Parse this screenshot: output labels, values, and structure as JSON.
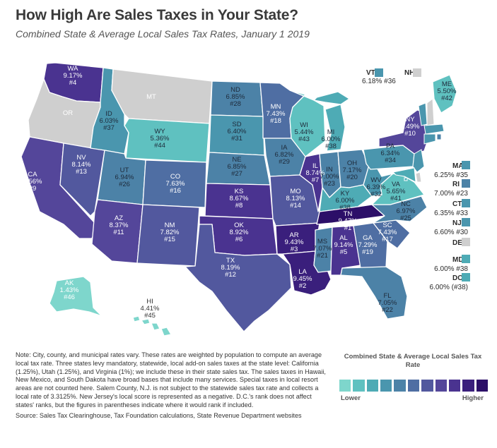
{
  "header": {
    "title": "How High Are Sales Taxes in Your State?",
    "subtitle": "Combined State & Average Local Sales Tax Rates, January 1 2019"
  },
  "colors": {
    "scale": [
      "#7ed6cc",
      "#5fc1c0",
      "#4eabb5",
      "#4a96ae",
      "#4c82a7",
      "#4f6ea3",
      "#52589e",
      "#54469a",
      "#4a3390",
      "#3a1f7c",
      "#2c0f68"
    ],
    "no_tax": "#cfcfcf",
    "border": "#ffffff"
  },
  "states": [
    {
      "abbr": "WA",
      "rate": "9.17%",
      "rank": "#4",
      "level": 8
    },
    {
      "abbr": "OR",
      "rate": "",
      "rank": "",
      "level": -1
    },
    {
      "abbr": "CA",
      "rate": "8.56%",
      "rank": "#9",
      "level": 7
    },
    {
      "abbr": "NV",
      "rate": "8.14%",
      "rank": "#13",
      "level": 6
    },
    {
      "abbr": "ID",
      "rate": "6.03%",
      "rank": "#37",
      "level": 3
    },
    {
      "abbr": "MT",
      "rate": "",
      "rank": "",
      "level": -1
    },
    {
      "abbr": "WY",
      "rate": "5.36%",
      "rank": "#44",
      "level": 1
    },
    {
      "abbr": "UT",
      "rate": "6.94%",
      "rank": "#26",
      "level": 4
    },
    {
      "abbr": "AZ",
      "rate": "8.37%",
      "rank": "#11",
      "level": 7
    },
    {
      "abbr": "CO",
      "rate": "7.63%",
      "rank": "#16",
      "level": 5
    },
    {
      "abbr": "NM",
      "rate": "7.82%",
      "rank": "#15",
      "level": 6
    },
    {
      "abbr": "ND",
      "rate": "6.85%",
      "rank": "#28",
      "level": 4
    },
    {
      "abbr": "SD",
      "rate": "6.40%",
      "rank": "#31",
      "level": 3
    },
    {
      "abbr": "NE",
      "rate": "6.85%",
      "rank": "#27",
      "level": 4
    },
    {
      "abbr": "KS",
      "rate": "8.67%",
      "rank": "#8",
      "level": 8
    },
    {
      "abbr": "OK",
      "rate": "8.92%",
      "rank": "#6",
      "level": 8
    },
    {
      "abbr": "TX",
      "rate": "8.19%",
      "rank": "#12",
      "level": 6
    },
    {
      "abbr": "MN",
      "rate": "7.43%",
      "rank": "#18",
      "level": 5
    },
    {
      "abbr": "IA",
      "rate": "6.82%",
      "rank": "#29",
      "level": 4
    },
    {
      "abbr": "MO",
      "rate": "8.13%",
      "rank": "#14",
      "level": 6
    },
    {
      "abbr": "AR",
      "rate": "9.43%",
      "rank": "#3",
      "level": 9
    },
    {
      "abbr": "LA",
      "rate": "9.45%",
      "rank": "#2",
      "level": 9
    },
    {
      "abbr": "WI",
      "rate": "5.44%",
      "rank": "#43",
      "level": 1
    },
    {
      "abbr": "IL",
      "rate": "8.74%",
      "rank": "#7",
      "level": 8
    },
    {
      "abbr": "MI",
      "rate": "6.00%",
      "rank": "#38",
      "level": 2
    },
    {
      "abbr": "IN",
      "rate": "7.00%",
      "rank": "#23",
      "level": 4
    },
    {
      "abbr": "OH",
      "rate": "7.17%",
      "rank": "#20",
      "level": 4
    },
    {
      "abbr": "KY",
      "rate": "6.00%",
      "rank": "#38",
      "level": 2
    },
    {
      "abbr": "TN",
      "rate": "9.47%",
      "rank": "#1",
      "level": 10
    },
    {
      "abbr": "MS",
      "rate": "7.07%",
      "rank": "#21",
      "level": 4
    },
    {
      "abbr": "AL",
      "rate": "9.14%",
      "rank": "#5",
      "level": 8
    },
    {
      "abbr": "GA",
      "rate": "7.29%",
      "rank": "#19",
      "level": 5
    },
    {
      "abbr": "FL",
      "rate": "7.05%",
      "rank": "#22",
      "level": 4
    },
    {
      "abbr": "SC",
      "rate": "7.43%",
      "rank": "#17",
      "level": 5
    },
    {
      "abbr": "NC",
      "rate": "6.97%",
      "rank": "#25",
      "level": 4
    },
    {
      "abbr": "VA",
      "rate": "5.65%",
      "rank": "#41",
      "level": 1
    },
    {
      "abbr": "WV",
      "rate": "6.39%",
      "rank": "#32",
      "level": 3
    },
    {
      "abbr": "PA",
      "rate": "6.34%",
      "rank": "#34",
      "level": 3
    },
    {
      "abbr": "NY",
      "rate": "8.49%",
      "rank": "#10",
      "level": 7
    },
    {
      "abbr": "ME",
      "rate": "5.50%",
      "rank": "#42",
      "level": 1
    },
    {
      "abbr": "AK",
      "rate": "1.43%",
      "rank": "#46",
      "level": 0
    },
    {
      "abbr": "HI",
      "rate": "4.41%",
      "rank": "#45",
      "level": -2
    }
  ],
  "small_states": [
    {
      "abbr": "VT",
      "rate": "6.18% #36",
      "level": 3
    },
    {
      "abbr": "NH",
      "rate": "",
      "level": -1
    },
    {
      "abbr": "MA",
      "rate": "6.25% #35",
      "level": 3
    },
    {
      "abbr": "RI",
      "rate": "7.00% #23",
      "level": 4
    },
    {
      "abbr": "CT",
      "rate": "6.35% #33",
      "level": 3
    },
    {
      "abbr": "NJ",
      "rate": "6.60% #30",
      "level": 3
    },
    {
      "abbr": "DE",
      "rate": "",
      "level": -1
    },
    {
      "abbr": "MD",
      "rate": "6.00% #38",
      "level": 2
    },
    {
      "abbr": "DC",
      "rate": "6.00% (#38)",
      "level": 2
    }
  ],
  "legend": {
    "title": "Combined State & Average Local Sales Tax Rate",
    "low_label": "Lower",
    "high_label": "Higher"
  },
  "note": {
    "text": "Note: City, county, and municipal rates vary. These rates are weighted by population to compute an average local tax rate. Three states levy mandatory, statewide, local add-on sales taxes at the state level: California (1.25%), Utah (1.25%), and Virginia (1%); we include these in their state sales tax. The sales taxes in Hawaii, New Mexico, and South Dakota have broad bases that include many services. Special taxes in local resort areas are not counted here. Salem County, N.J. is not subject to the statewide sales tax rate and collects a local rate of 3.3125%. New Jersey's local score is represented as a negative. D.C.'s rank does not affect states' ranks, but the figures in parentheses indicate where it would rank if included.",
    "source": "Source: Sales Tax Clearinghouse, Tax Foundation calculations, State Revenue Department websites"
  }
}
